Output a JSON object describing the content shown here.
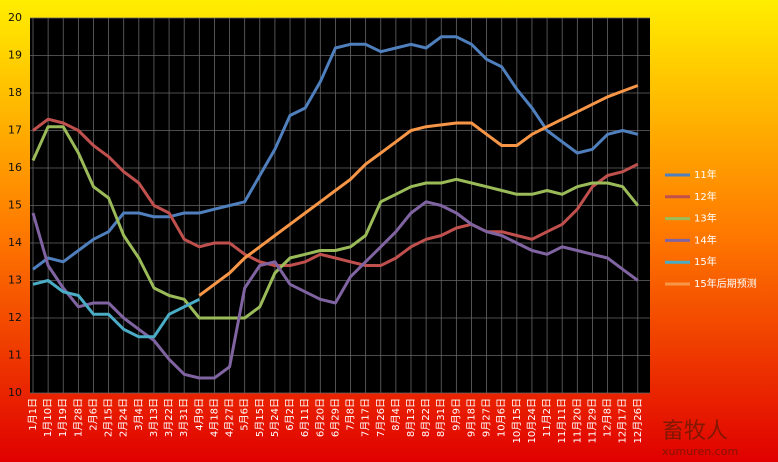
{
  "chart_data": {
    "type": "line",
    "categories": [
      "1月1日",
      "1月10日",
      "1月19日",
      "1月28日",
      "2月6日",
      "2月15日",
      "2月24日",
      "3月4日",
      "3月13日",
      "3月22日",
      "3月31日",
      "4月9日",
      "4月18日",
      "4月27日",
      "5月6日",
      "5月15日",
      "5月24日",
      "6月2日",
      "6月11日",
      "6月20日",
      "6月29日",
      "7月8日",
      "7月17日",
      "7月26日",
      "8月4日",
      "8月13日",
      "8月22日",
      "8月31日",
      "9月9日",
      "9月18日",
      "9月27日",
      "10月6日",
      "10月15日",
      "10月24日",
      "11月2日",
      "11月11日",
      "11月20日",
      "11月29日",
      "12月8日",
      "12月17日",
      "12月26日"
    ],
    "series": [
      {
        "name": "11年",
        "color": "#4f7fbc",
        "values": [
          13.3,
          13.6,
          13.5,
          13.8,
          14.1,
          14.3,
          14.8,
          14.8,
          14.7,
          14.7,
          14.8,
          14.8,
          14.9,
          15.0,
          15.1,
          15.8,
          16.5,
          17.4,
          17.6,
          18.3,
          19.2,
          19.3,
          19.3,
          19.1,
          19.2,
          19.3,
          19.2,
          19.5,
          19.5,
          19.3,
          18.9,
          18.7,
          18.1,
          17.6,
          17.0,
          16.7,
          16.4,
          16.5,
          16.9,
          17.0,
          16.9
        ]
      },
      {
        "name": "12年",
        "color": "#c0504d",
        "values": [
          17.0,
          17.3,
          17.2,
          17.0,
          16.6,
          16.3,
          15.9,
          15.6,
          15.0,
          14.8,
          14.1,
          13.9,
          14.0,
          14.0,
          13.7,
          13.5,
          13.4,
          13.4,
          13.5,
          13.7,
          13.6,
          13.5,
          13.4,
          13.4,
          13.6,
          13.9,
          14.1,
          14.2,
          14.4,
          14.5,
          14.3,
          14.3,
          14.2,
          14.1,
          14.3,
          14.5,
          14.9,
          15.5,
          15.8,
          15.9,
          16.1
        ]
      },
      {
        "name": "13年",
        "color": "#9bbb59",
        "values": [
          16.2,
          17.1,
          17.1,
          16.4,
          15.5,
          15.2,
          14.2,
          13.6,
          12.8,
          12.6,
          12.5,
          12.0,
          12.0,
          12.0,
          12.0,
          12.3,
          13.2,
          13.6,
          13.7,
          13.8,
          13.8,
          13.9,
          14.2,
          15.1,
          15.3,
          15.5,
          15.6,
          15.6,
          15.7,
          15.6,
          15.5,
          15.4,
          15.3,
          15.3,
          15.4,
          15.3,
          15.5,
          15.6,
          15.6,
          15.5,
          15.0
        ]
      },
      {
        "name": "14年",
        "color": "#8064a2",
        "values": [
          14.8,
          13.4,
          12.8,
          12.3,
          12.4,
          12.4,
          12.0,
          11.7,
          11.4,
          10.9,
          10.5,
          10.4,
          10.4,
          10.7,
          12.8,
          13.4,
          13.5,
          12.9,
          12.7,
          12.5,
          12.4,
          13.1,
          13.5,
          13.9,
          14.3,
          14.8,
          15.1,
          15.0,
          14.8,
          14.5,
          14.3,
          14.2,
          14.0,
          13.8,
          13.7,
          13.9,
          13.8,
          13.7,
          13.6,
          13.3,
          13.0
        ]
      },
      {
        "name": "15年",
        "color": "#4bacc6",
        "values": [
          12.9,
          13.0,
          12.7,
          12.6,
          12.1,
          12.1,
          11.7,
          11.5,
          11.5,
          12.1,
          12.3,
          12.5,
          null,
          null,
          null,
          null,
          null,
          null,
          null,
          null,
          null,
          null,
          null,
          null,
          null,
          null,
          null,
          null,
          null,
          null,
          null,
          null,
          null,
          null,
          null,
          null,
          null,
          null,
          null,
          null,
          null
        ]
      },
      {
        "name": "15年后期预测",
        "color": "#f79646",
        "values": [
          null,
          null,
          null,
          null,
          null,
          null,
          null,
          null,
          null,
          null,
          null,
          12.6,
          12.9,
          13.2,
          13.6,
          13.9,
          14.2,
          14.5,
          14.8,
          15.1,
          15.4,
          15.7,
          16.1,
          16.4,
          16.7,
          17.0,
          17.1,
          17.15,
          17.2,
          17.2,
          16.9,
          16.6,
          16.6,
          16.9,
          17.1,
          17.3,
          17.5,
          17.7,
          17.9,
          18.05,
          18.2
        ]
      }
    ],
    "ylim": [
      10,
      20
    ],
    "yticks": [
      10,
      11,
      12,
      13,
      14,
      15,
      16,
      17,
      18,
      19,
      20
    ],
    "grid": true,
    "legend": "right",
    "watermark": [
      "畜牧人",
      "xumuren.com"
    ]
  }
}
